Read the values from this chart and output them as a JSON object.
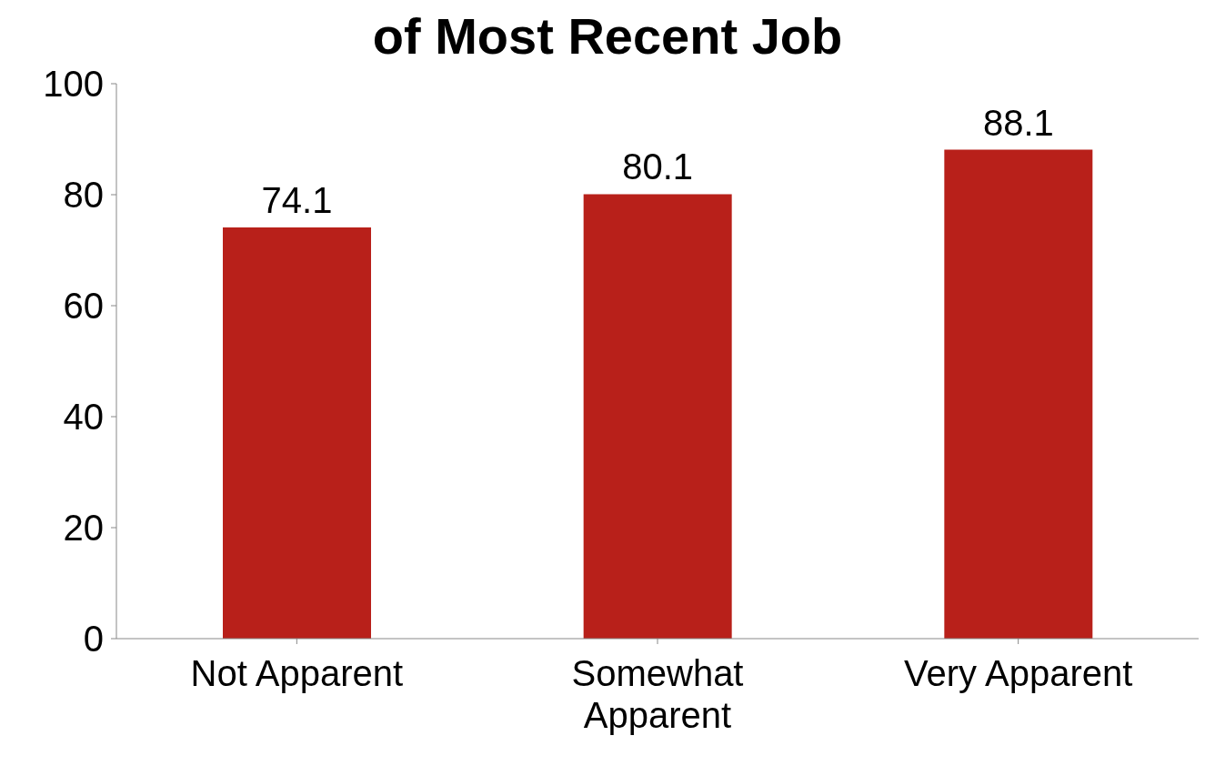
{
  "chart_data": {
    "type": "bar",
    "title": "of Most Recent Job",
    "categories": [
      "Not Apparent",
      "Somewhat Apparent",
      "Very Apparent"
    ],
    "values": [
      74.1,
      80.1,
      88.1
    ],
    "color": "#b8201a",
    "ylim": [
      0,
      100
    ],
    "yticks": [
      0,
      20,
      40,
      60,
      80,
      100
    ],
    "grid": false,
    "data_labels": true,
    "legend": false
  }
}
